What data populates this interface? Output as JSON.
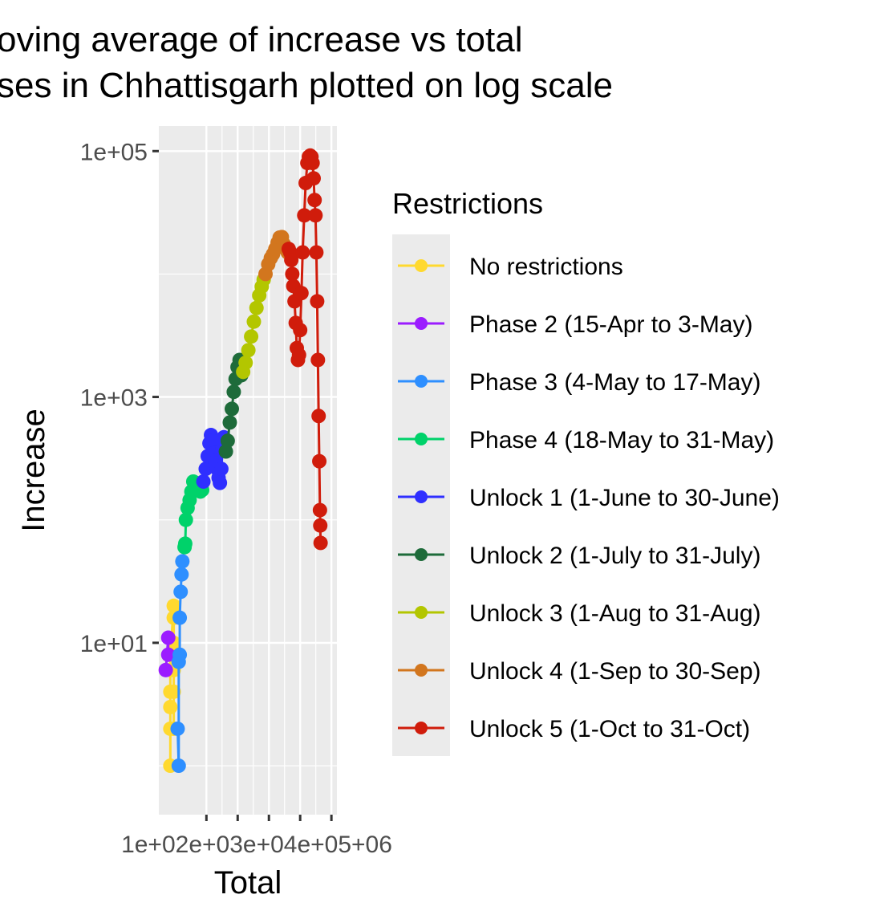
{
  "chart_data": {
    "type": "line",
    "title_line1": "oving average of increase vs total",
    "title_line2": "ses in Chhattisgarh plotted on log scale",
    "xlabel": "Total",
    "ylabel": "Increase",
    "x_scale": "log10",
    "y_scale": "log10",
    "xlim": [
      3,
      1500000
    ],
    "ylim": [
      0.4,
      160000
    ],
    "x_ticks": [
      100,
      1000,
      10000,
      100000,
      1000000
    ],
    "x_tick_labels": [
      "1e+02",
      "1e+03",
      "1e+04",
      "1e+05",
      "1e+06"
    ],
    "x_tick_overlap_text": "1e+02e+03e+04e+05+06",
    "y_ticks": [
      10,
      1000,
      100000
    ],
    "y_tick_labels": [
      "1e+01",
      "1e+03",
      "1e+05"
    ],
    "grid": true,
    "legend_position": "right",
    "legend_title": "Restrictions",
    "series": [
      {
        "name": "No restrictions",
        "color": "#FFD92F",
        "points": [
          [
            7,
            1
          ],
          [
            7,
            2
          ],
          [
            7,
            3
          ],
          [
            7,
            4
          ],
          [
            7,
            6
          ],
          [
            7,
            8
          ],
          [
            9,
            20
          ],
          [
            9,
            16
          ],
          [
            9,
            10
          ],
          [
            9,
            6
          ],
          [
            9,
            4
          ],
          [
            9,
            2
          ]
        ]
      },
      {
        "name": "Phase 2 (15-Apr to 3-May)",
        "color": "#9B1CFF",
        "points": [
          [
            5,
            6
          ],
          [
            6,
            11
          ],
          [
            6,
            8
          ]
        ]
      },
      {
        "name": "Phase 3 (4-May to 17-May)",
        "color": "#2E8FFF",
        "points": [
          [
            12,
            2
          ],
          [
            13,
            1
          ],
          [
            13,
            7
          ],
          [
            14,
            8
          ],
          [
            14,
            16
          ],
          [
            15,
            26
          ],
          [
            16,
            36
          ],
          [
            17,
            46
          ]
        ]
      },
      {
        "name": "Phase 4 (18-May to 31-May)",
        "color": "#00D26A",
        "points": [
          [
            20,
            60
          ],
          [
            21,
            64
          ],
          [
            22,
            100
          ],
          [
            25,
            125
          ],
          [
            29,
            145
          ],
          [
            33,
            170
          ],
          [
            38,
            205
          ],
          [
            46,
            200
          ],
          [
            54,
            180
          ],
          [
            64,
            170
          ],
          [
            73,
            175
          ]
        ]
      },
      {
        "name": "Unlock 1 (1-June to 30-June)",
        "color": "#2F2FFF",
        "points": [
          [
            80,
            205
          ],
          [
            95,
            260
          ],
          [
            110,
            330
          ],
          [
            125,
            420
          ],
          [
            140,
            490
          ],
          [
            155,
            440
          ],
          [
            175,
            350
          ],
          [
            195,
            300
          ],
          [
            220,
            260
          ],
          [
            245,
            220
          ],
          [
            270,
            200
          ],
          [
            300,
            260
          ],
          [
            330,
            380
          ],
          [
            360,
            470
          ]
        ]
      },
      {
        "name": "Unlock 2 (1-July to 31-July)",
        "color": "#1E6B3A",
        "points": [
          [
            420,
            360
          ],
          [
            480,
            440
          ],
          [
            560,
            620
          ],
          [
            650,
            800
          ],
          [
            750,
            1100
          ],
          [
            860,
            1400
          ],
          [
            990,
            1750
          ],
          [
            1150,
            2000
          ],
          [
            1300,
            1500
          ]
        ]
      },
      {
        "name": "Unlock 3 (1-Aug to 31-Aug)",
        "color": "#B3C600",
        "points": [
          [
            1500,
            1600
          ],
          [
            1800,
            1900
          ],
          [
            2200,
            2400
          ],
          [
            2700,
            3100
          ],
          [
            3300,
            4100
          ],
          [
            4000,
            5300
          ],
          [
            4900,
            6700
          ],
          [
            5900,
            7900
          ],
          [
            6800,
            9000
          ]
        ]
      },
      {
        "name": "Unlock 4 (1-Sep to 30-Sep)",
        "color": "#D2761E",
        "points": [
          [
            7800,
            10000
          ],
          [
            9500,
            12000
          ],
          [
            11500,
            13500
          ],
          [
            13500,
            14500
          ],
          [
            16000,
            16000
          ],
          [
            19000,
            18000
          ],
          [
            22000,
            19800
          ],
          [
            26000,
            20000
          ],
          [
            30000,
            17500
          ],
          [
            35000,
            16000
          ],
          [
            40000,
            15000
          ]
        ]
      },
      {
        "name": "Unlock 5 (1-Oct to 31-Oct)",
        "color": "#D01C0B",
        "points": [
          [
            43000,
            16000
          ],
          [
            48000,
            15000
          ],
          [
            52000,
            13000
          ],
          [
            56000,
            10000
          ],
          [
            60000,
            8000
          ],
          [
            66000,
            6000
          ],
          [
            72000,
            4000
          ],
          [
            78000,
            2500
          ],
          [
            85000,
            2000
          ],
          [
            92000,
            2200
          ],
          [
            100000,
            3500
          ],
          [
            110000,
            7000
          ],
          [
            120000,
            15000
          ],
          [
            135000,
            30000
          ],
          [
            150000,
            55000
          ],
          [
            170000,
            80000
          ],
          [
            190000,
            90000
          ],
          [
            210000,
            92000
          ],
          [
            230000,
            90000
          ],
          [
            250000,
            80000
          ],
          [
            270000,
            60000
          ],
          [
            290000,
            40000
          ],
          [
            310000,
            30000
          ],
          [
            330000,
            15000
          ],
          [
            350000,
            6000
          ],
          [
            370000,
            2000
          ],
          [
            390000,
            700
          ],
          [
            410000,
            300
          ],
          [
            430000,
            120
          ],
          [
            440000,
            90
          ],
          [
            450000,
            65
          ]
        ]
      }
    ]
  }
}
